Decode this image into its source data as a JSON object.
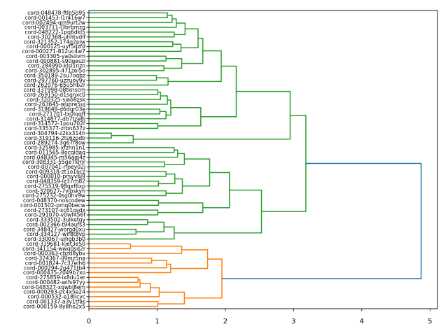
{
  "chart_data": {
    "type": "dendrogram",
    "orientation": "right",
    "title": "",
    "xlabel": "",
    "ylabel": "",
    "xlim": [
      0,
      5.11
    ],
    "x_ticks": [
      0,
      1,
      2,
      3,
      4,
      5
    ],
    "x_tick_labels": [
      "0",
      "1",
      "2",
      "3",
      "4",
      "5"
    ],
    "grid": false,
    "colors": {
      "cluster_1": "#2ca02c",
      "cluster_2": "#ff7f0e",
      "above_threshold": "#1f77b4"
    },
    "leaves": [
      "cord-048478-ftlb5b95",
      "cord-001453-l1r416w7",
      "cord-002494-qm9urt2w",
      "cord-003711-l3brbmzg",
      "cord-048222-1pq6dkl5",
      "cord-302368-uhhtvdif",
      "cord-321352-174q2piw",
      "cord-000125-uyf5qzfd",
      "cord-000271-812uc4w7",
      "cord-003305-ya0siivm",
      "cord-000881-s90geszi",
      "cord-284990-klsl1nzn",
      "cord-302895-471zei5o",
      "cord-350189-2su7oqbz",
      "cord-297760-uzzuoy9v",
      "cord-262076-65u5hb2r",
      "cord-337998-08tknscm",
      "cord-269150-d1sqnxc0",
      "cord-320325-sjab8zsk",
      "cord-263645-wupre5uj",
      "cord-319649-d6dqr03e",
      "cord-271701-tx0lqqff",
      "cord-314877-db7tze8j",
      "cord-314572-1pou702r",
      "cord-335377-zrbn637z",
      "cord-304794-z2kx314h",
      "cord-319116-2ts6zpdb",
      "cord-289274-3g67f8sw",
      "cord-325985-xfzhn1n1",
      "cord-011565-8ocqldaq",
      "cord-048345-m56agj4z",
      "cord-308331-55ge7kmr",
      "cord-007041-rfoey02j",
      "cord-009318-zt1o1bcz",
      "cord-000010-prsyv6j9",
      "cord-048359-lz37rh82",
      "cord-275519-98qxf6xp",
      "cord-320627-7vlbskyh",
      "cord-275232-0sg0hv9w",
      "cord-048370-noscodew",
      "cord-001502-pmq0becw",
      "cord-273107-xc61osdx",
      "cord-291070-v0wf456f",
      "cord-333502-3ulketgy",
      "cord-002366-t94aufs3",
      "cord-348427-worgd0xu",
      "cord-334127-wif8t8vp",
      "cord-330067-ujhgb3b0",
      "cord-319681-kjet3e50",
      "cord-341154-wwq0sd2r",
      "cord-000363-cbzd8ybv",
      "cord-324367-ll9mz5na",
      "cord-001824-7c37elh6",
      "cord-000294-2g471tb4",
      "cord-000435-2049b7xo",
      "cord-275859-ix8du1er",
      "cord-000482-wifs97yy",
      "cord-048327-xgwbl8em",
      "cord-000293-pc4x5e24",
      "cord-000532-e18licyc",
      "cord-001337-a3y1tfas",
      "cord-000159-8y8ho2x5"
    ],
    "tree_format": "node = [left, right, merge_distance, optional_color]; integers are leaf indices",
    "tree": [
      [
        [
          [
            [
              [
                [
                  [
                    [
                      [
                        [
                          0,
                          1,
                          1.15
                        ],
                        2,
                        1.22
                      ],
                      3,
                      1.28
                    ],
                    [
                      4,
                      5,
                      1.25
                    ],
                    1.41
                  ],
                  [
                    [
                      6,
                      7,
                      1.23
                    ],
                    8,
                    1.35
                  ],
                  1.6
                ],
                [
                  [
                    9,
                    10,
                    1.13
                  ],
                  [
                    11,
                    12,
                    1.1
                  ],
                  1.36
                ],
                1.67
              ],
              [
                [
                  13,
                  14,
                  0.99
                ],
                15,
                1.16
              ],
              1.94
            ],
            [
              [
                [
                  [
                    [
                      16,
                      17,
                      1.01
                    ],
                    18,
                    1.05
                  ],
                  19,
                  1.15
                ],
                [
                  [
                    20,
                    21,
                    1.04
                  ],
                  22,
                  1.13
                ],
                1.2
              ],
              [
                23,
                24,
                1.01
              ],
              1.64
            ],
            2.16
          ],
          [
            [
              25,
              26,
              0.33
            ],
            27,
            0.65
          ],
          2.95
        ],
        [
          [
            [
              [
                [
                  [
                    28,
                    29,
                    1.25
                  ],
                  30,
                  1.3
                ],
                [
                  31,
                  32,
                  1.11
                ],
                1.4
              ],
              [
                [
                  [
                    33,
                    34,
                    1.13
                  ],
                  [
                    35,
                    36,
                    1.02
                  ],
                  1.26
                ],
                [
                  37,
                  38,
                  1.13
                ],
                1.37
              ],
              1.77
            ],
            [
              [
                39,
                40,
                1.02
              ],
              [
                41,
                42,
                1.01
              ],
              1.67
            ],
            2.06
          ],
          [
            [
              [
                43,
                44,
                0.86
              ],
              [
                45,
                46,
                0.69
              ],
              1.1
            ],
            47,
            1.25
          ],
          2.53
        ],
        3.18,
        "#2ca02c"
      ],
      [
        [
          [
            [
              48,
              49,
              0.61
            ],
            50,
            1.36
          ],
          [
            [
              [
                51,
                52,
                0.92
              ],
              53,
              1.14
            ],
            54,
            1.2
          ],
          1.74
        ],
        [
          [
            [
              [
                [
                  55,
                  56,
                  0.72
                ],
                57,
                0.75
              ],
              58,
              0.9
            ],
            59,
            1.03
          ],
          [
            60,
            61,
            1.01
          ],
          1.4
        ],
        1.95,
        "#ff7f0e"
      ],
      4.87,
      "#1f77b4"
    ]
  }
}
